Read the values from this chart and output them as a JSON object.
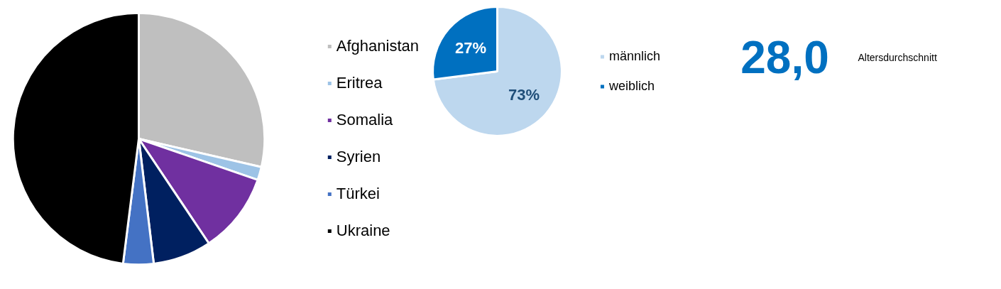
{
  "chart_data": [
    {
      "type": "pie",
      "categories": [
        "Afghanistan",
        "Eritrea",
        "Somalia",
        "Syrien",
        "Türkei",
        "Ukraine"
      ],
      "values": [
        28.6,
        1.7,
        10.3,
        7.5,
        3.9,
        48.0
      ],
      "colors": [
        "#bfbfbf",
        "#9dc3e6",
        "#7030a0",
        "#002060",
        "#4472c4",
        "#000000"
      ],
      "legend": "right"
    },
    {
      "type": "pie",
      "categories": [
        "männlich",
        "weiblich"
      ],
      "values": [
        73,
        27
      ],
      "colors": [
        "#bdd7ee",
        "#0070c0"
      ],
      "value_labels": [
        "73%",
        "27%"
      ],
      "legend": "right"
    },
    {
      "type": "other",
      "annotations": [
        "28,0",
        "Altersdurchschnitt"
      ]
    }
  ]
}
